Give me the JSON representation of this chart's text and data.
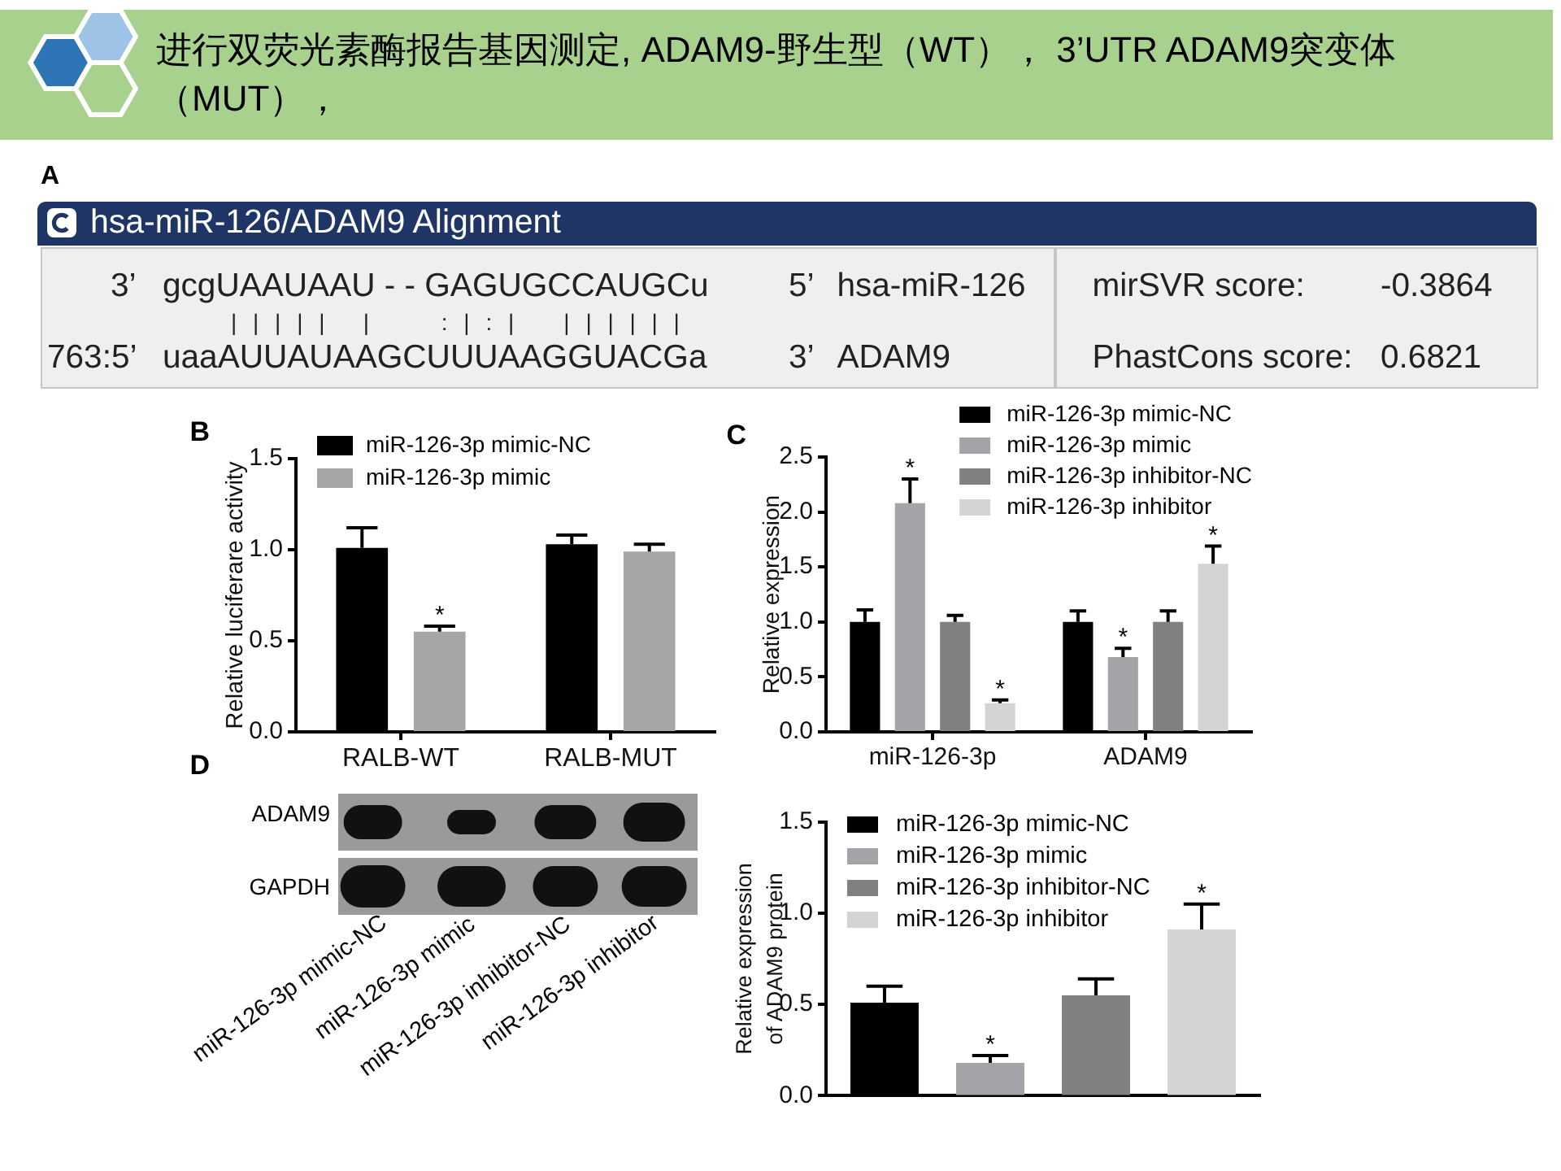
{
  "chart_data": [
    {
      "type": "other",
      "title": "进行双荧光素酶报告基因测定, ADAM9-野生型（WT）， 3’UTR ADAM9突变体（MUT），",
      "annotations": [
        "A",
        "hsa-miR-126/ADAM9 Alignment",
        "3’",
        "gcgUAAUAAU - - GAGUGCCAUGCu",
        "5’",
        "hsa-miR-126",
        "mirSVR score:",
        "-0.3864",
        "| | | | |   |      : | : |    | | | | | |",
        "763:5’",
        "uaaAUUAUAAGCUUUAAGGUACGa",
        "3’",
        "ADAM9",
        "PhastCons score:",
        "0.6821"
      ]
    },
    {
      "type": "bar",
      "categories": [
        "RALB-WT",
        "RALB-MUT"
      ],
      "series": [
        {
          "name": "miR-126-3p mimic-NC",
          "color": "#000000",
          "values": [
            1.01,
            1.03
          ],
          "errors": [
            0.11,
            0.05
          ]
        },
        {
          "name": "miR-126-3p mimic",
          "color": "#a6a6a6",
          "values": [
            0.55,
            0.99
          ],
          "errors": [
            0.03,
            0.04
          ],
          "value_labels": [
            "*",
            null
          ]
        }
      ],
      "ylabel": "Relative luciferare activity",
      "ylim": [
        0,
        1.5
      ],
      "yticks": [
        {
          "value": 0,
          "label": "0.0"
        },
        0.5,
        {
          "value": 1,
          "label": "1.0"
        },
        1.5
      ],
      "legend": "top left",
      "annotations": [
        "B"
      ]
    },
    {
      "type": "bar",
      "categories": [
        "miR-126-3p",
        "ADAM9"
      ],
      "series": [
        {
          "name": "miR-126-3p mimic-NC",
          "color": "#000000",
          "values": [
            1.0,
            1.0
          ],
          "errors": [
            0.11,
            0.1
          ]
        },
        {
          "name": "miR-126-3p mimic",
          "color": "#a3a3a8",
          "values": [
            2.08,
            0.68
          ],
          "errors": [
            0.22,
            0.08
          ],
          "value_labels": [
            "*",
            "*"
          ]
        },
        {
          "name": "miR-126-3p inhibitor-NC",
          "color": "#808080",
          "values": [
            1.0,
            1.0
          ],
          "errors": [
            0.06,
            0.1
          ]
        },
        {
          "name": "miR-126-3p inhibitor",
          "color": "#d4d4d4",
          "values": [
            0.26,
            1.53
          ],
          "errors": [
            0.03,
            0.16
          ],
          "value_labels": [
            "*",
            "*"
          ]
        }
      ],
      "ylabel": "Relative expression",
      "ylim": [
        0,
        2.5
      ],
      "yticks": [
        {
          "value": 0,
          "label": "0.0"
        },
        0.5,
        {
          "value": 1,
          "label": "1.0"
        },
        1.5,
        {
          "value": 2,
          "label": "2.0"
        },
        2.5
      ],
      "legend": "top right",
      "annotations": [
        "C"
      ]
    },
    {
      "type": "bar",
      "categories": [
        null
      ],
      "series": [
        {
          "name": "miR-126-3p mimic-NC",
          "color": "#000000",
          "values": [
            0.51
          ],
          "errors": [
            0.09
          ]
        },
        {
          "name": "miR-126-3p mimic",
          "color": "#a3a3a8",
          "values": [
            0.18
          ],
          "errors": [
            0.04
          ],
          "value_labels": [
            "*"
          ]
        },
        {
          "name": "miR-126-3p inhibitor-NC",
          "color": "#808080",
          "values": [
            0.55
          ],
          "errors": [
            0.09
          ]
        },
        {
          "name": "miR-126-3p inhibitor",
          "color": "#d4d4d4",
          "values": [
            0.91
          ],
          "errors": [
            0.14
          ],
          "value_labels": [
            "*"
          ]
        }
      ],
      "ylabel": "Relative expression\nof ADAM9 protein",
      "ylim": [
        0,
        1.5
      ],
      "yticks": [
        {
          "value": 0,
          "label": "0.0"
        },
        0.5,
        {
          "value": 1,
          "label": "1.0"
        },
        1.5
      ],
      "legend": "top left",
      "annotations": [
        "D",
        "ADAM9",
        "GAPDH",
        "miR-126-3p mimic-NC",
        "miR-126-3p mimic",
        "miR-126-3p inhibitor-NC",
        "miR-126-3p inhibitor"
      ]
    }
  ]
}
